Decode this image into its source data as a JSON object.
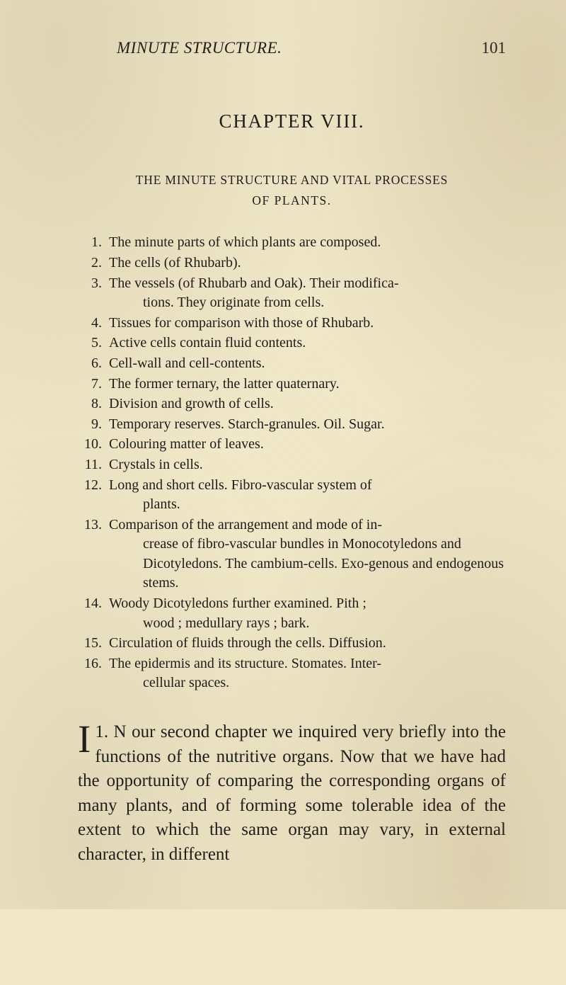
{
  "page": {
    "running_title": "MINUTE STRUCTURE.",
    "page_number": "101",
    "chapter_title": "CHAPTER VIII.",
    "subtitle_line1": "THE MINUTE STRUCTURE AND VITAL PROCESSES",
    "subtitle_line2": "OF PLANTS.",
    "colors": {
      "background": "#f1e8c8",
      "text": "#1a1a1a"
    },
    "typography": {
      "body_fontsize": 25,
      "list_fontsize": 20,
      "header_fontsize": 23,
      "chapter_fontsize": 27,
      "subtitle_fontsize": 17.5,
      "dropcap_fontsize": 55,
      "font_family": "Times New Roman"
    }
  },
  "items": [
    {
      "num": "1.",
      "text": "The minute parts of which plants are composed."
    },
    {
      "num": "2.",
      "text": "The cells (of Rhubarb)."
    },
    {
      "num": "3.",
      "text": "The vessels (of Rhubarb and Oak). Their modifica-",
      "cont": "tions. They originate from cells."
    },
    {
      "num": "4.",
      "text": "Tissues for comparison with those of Rhubarb."
    },
    {
      "num": "5.",
      "text": "Active cells contain fluid contents."
    },
    {
      "num": "6.",
      "text": "Cell-wall and cell-contents."
    },
    {
      "num": "7.",
      "text": "The former ternary, the latter quaternary."
    },
    {
      "num": "8.",
      "text": "Division and growth of cells."
    },
    {
      "num": "9.",
      "text": "Temporary reserves. Starch-granules. Oil. Sugar."
    },
    {
      "num": "10.",
      "text": "Colouring matter of leaves."
    },
    {
      "num": "11.",
      "text": "Crystals in cells."
    },
    {
      "num": "12.",
      "text": "Long and short cells. Fibro-vascular system of",
      "cont": "plants."
    },
    {
      "num": "13.",
      "text": "Comparison of the arrangement and mode of in-",
      "cont": "crease of fibro-vascular bundles in Monocotyledons and Dicotyledons. The cambium-cells. Exo-genous and endogenous stems."
    },
    {
      "num": "14.",
      "text": "Woody Dicotyledons further examined. Pith ;",
      "cont": "wood ; medullary rays ; bark."
    },
    {
      "num": "15.",
      "text": "Circulation of fluids through the cells. Diffusion."
    },
    {
      "num": "16.",
      "text": "The epidermis and its structure. Stomates. Inter-",
      "cont": "cellular spaces."
    }
  ],
  "body": {
    "para_num": "1.",
    "dropcap": "I",
    "first_word_rest": "N",
    "text": " our second chapter we inquired very briefly into the functions of the nutri­tive organs. Now that we have had the oppor­tunity of comparing the corresponding organs of many plants, and of forming some tolerable idea of the extent to which the same organ may vary, in external character, in different"
  }
}
